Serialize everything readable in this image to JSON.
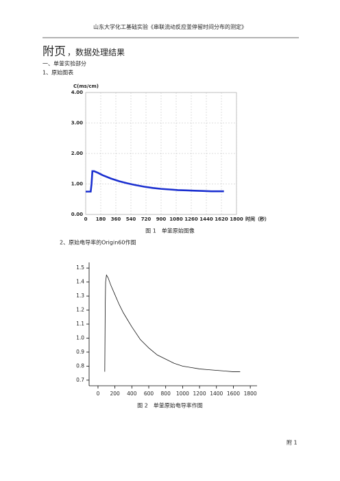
{
  "header": "山东大学化工基础实验《串联流动反应釜停留时间分布的测定》",
  "title": {
    "main": "附页",
    "sub": "，数据处理结果"
  },
  "section": "一、单釜实验部分",
  "items": [
    "1、原始图表",
    "2、原始电导率的Origin60作图"
  ],
  "charts": [
    {
      "type": "line",
      "y_label": "C(ms/cm)",
      "x_label": "时间（秒）",
      "color": "#1a2fd0",
      "grid": true,
      "x": [
        0,
        30,
        60,
        70,
        80,
        100,
        150,
        200,
        300,
        400,
        500,
        600,
        700,
        800,
        900,
        1000,
        1100,
        1200,
        1300,
        1400,
        1500,
        1600,
        1650
      ],
      "values": [
        0.75,
        0.75,
        0.75,
        1.0,
        1.42,
        1.42,
        1.36,
        1.29,
        1.18,
        1.09,
        1.02,
        0.96,
        0.91,
        0.87,
        0.84,
        0.82,
        0.8,
        0.79,
        0.78,
        0.77,
        0.76,
        0.76,
        0.76
      ],
      "xlim": [
        0,
        1800
      ],
      "ylim": [
        0,
        4
      ],
      "xticks": [
        0,
        180,
        360,
        540,
        720,
        900,
        1080,
        1260,
        1440,
        1620,
        1800
      ],
      "yticks": [
        {
          "value": 0,
          "label": "0.00"
        },
        {
          "value": 1,
          "label": "1.00"
        },
        {
          "value": 2,
          "label": "2.00"
        },
        {
          "value": 3,
          "label": "3.00"
        },
        {
          "value": 4,
          "label": "4.00"
        }
      ],
      "caption": "图 1　单釜原始图像"
    },
    {
      "type": "line",
      "color": "#111111",
      "grid": false,
      "x": [
        80,
        85,
        90,
        100,
        120,
        150,
        200,
        250,
        300,
        350,
        400,
        500,
        600,
        700,
        800,
        900,
        1000,
        1100,
        1200,
        1300,
        1400,
        1500,
        1600,
        1680
      ],
      "values": [
        0.76,
        1.2,
        1.4,
        1.45,
        1.43,
        1.38,
        1.31,
        1.24,
        1.18,
        1.13,
        1.08,
        0.99,
        0.93,
        0.88,
        0.85,
        0.82,
        0.8,
        0.79,
        0.78,
        0.775,
        0.77,
        0.765,
        0.76,
        0.76
      ],
      "xlim": [
        -105,
        1880
      ],
      "ylim": [
        0.66,
        1.54
      ],
      "xticks": [
        0,
        200,
        400,
        600,
        800,
        1000,
        1200,
        1400,
        1600,
        1800
      ],
      "yticks": [
        0.7,
        0.8,
        0.9,
        {
          "value": 1,
          "label": "1.0"
        },
        1.1,
        1.2,
        1.3,
        1.4,
        1.5
      ],
      "caption": "图 2　单釜原始电导率作图"
    }
  ],
  "footer": "附 1"
}
